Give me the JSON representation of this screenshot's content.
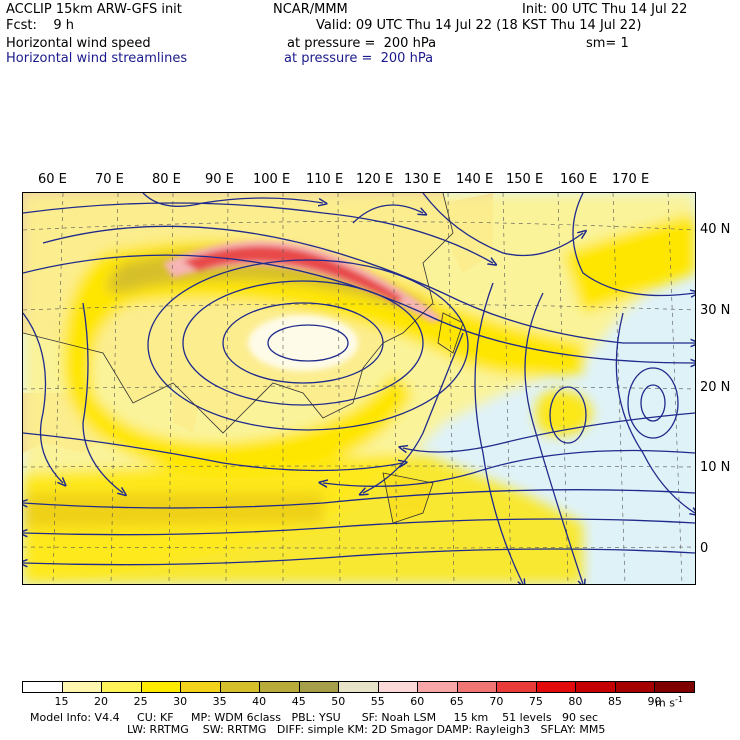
{
  "header": {
    "left1": "ACCLIP 15km ARW-GFS init",
    "left2": "Fcst:    9 h",
    "left3": "Horizontal wind speed",
    "left4": "Horizontal wind streamlines",
    "center1": "NCAR/MMM",
    "init": "Init: 00 UTC Thu 14 Jul 22",
    "valid": "Valid: 09 UTC Thu 14 Jul 22 (18 KST Thu 14 Jul 22)",
    "pressure1": "at pressure =  200 hPa",
    "pressure2": "at pressure =  200 hPa",
    "sm": "sm= 1"
  },
  "map": {
    "lon_labels": [
      "60 E",
      "70 E",
      "80 E",
      "90 E",
      "100 E",
      "110 E",
      "120 E",
      "130 E",
      "140 E",
      "150 E",
      "160 E",
      "170 E"
    ],
    "lat_labels": [
      "40 N",
      "30 N",
      "20 N",
      "10 N",
      "0"
    ],
    "colors": {
      "ocean": "#dff2f8",
      "land": "#e9c9a6",
      "yellow_light": "#fff38a",
      "yellow": "#ffe600",
      "gold": "#e8c71a",
      "olive": "#c9b33a",
      "pink": "#f6b5b5",
      "red": "#e8494a",
      "streamline": "#1f2a8c"
    }
  },
  "colorbar": {
    "labels": [
      "15",
      "20",
      "25",
      "30",
      "35",
      "40",
      "45",
      "50",
      "55",
      "60",
      "65",
      "70",
      "75",
      "80",
      "85",
      "90"
    ],
    "unit": "m s",
    "unit_sup": "-1",
    "colors": [
      "#ffffff",
      "#fff7b0",
      "#fff35a",
      "#ffeb00",
      "#f2d21a",
      "#d6bf2c",
      "#b8ab3c",
      "#a59f4a",
      "#e6e3c8",
      "#fcd9d9",
      "#f7a7a7",
      "#f07676",
      "#ea3b3b",
      "#e20a0a",
      "#c40000",
      "#a50000",
      "#7e0000"
    ]
  },
  "footer": {
    "line1": "Model Info: V4.4     CU: KF     MP: WDM 6class   PBL: YSU      SF: Noah LSM     15 km    51 levels   90 sec",
    "line2": "LW: RRTMG    SW: RRTMG   DIFF: simple KM: 2D Smagor DAMP: Rayleigh3   SFLAY: MM5"
  }
}
